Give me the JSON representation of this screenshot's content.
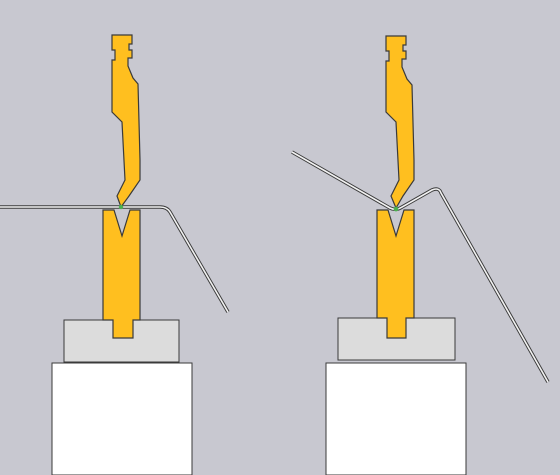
{
  "colors": {
    "background": "#c8c8d0",
    "tool": "#ffbf1f",
    "tool_outline": "#3a3a3a",
    "sheet": "#f2f2f2",
    "sheet_outline": "#3a3a3a",
    "die_holder": "#dcdcdc",
    "machine_bed": "#ffffff",
    "contact_marker": "#4caf50"
  },
  "panels": [
    {
      "name": "left-bending-stage",
      "state": "initial contact"
    },
    {
      "name": "right-bending-stage",
      "state": "bent"
    }
  ]
}
